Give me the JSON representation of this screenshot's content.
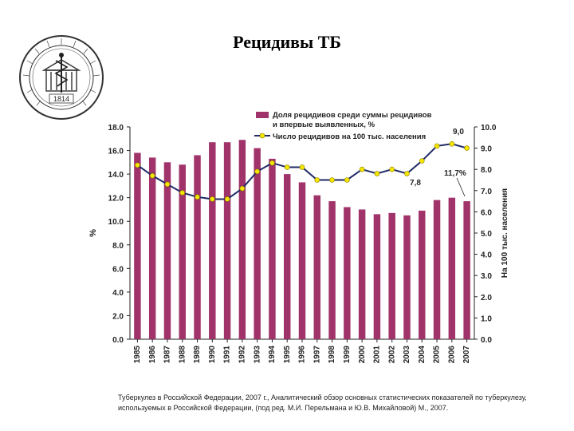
{
  "title": "Рецидивы ТБ",
  "logo": {
    "year": "1814"
  },
  "source": "Туберкулез в Российской Федерации, 2007 г., Аналитический обзор основных статистических показателей по туберкулезу, используемых в Российской Федерации, (под ред. М.И. Перельмана и Ю.В. Михайловой) М., 2007.",
  "chart_data": {
    "type": "bar",
    "categories": [
      "1985",
      "1986",
      "1987",
      "1988",
      "1989",
      "1990",
      "1991",
      "1992",
      "1993",
      "1994",
      "1995",
      "1996",
      "1997",
      "1998",
      "1999",
      "2000",
      "2001",
      "2002",
      "2003",
      "2004",
      "2005",
      "2006",
      "2007"
    ],
    "series": [
      {
        "name": "Доля рецидивов среди суммы рецидивов и впервые выявленных, %",
        "type": "bar",
        "axis": "left",
        "color": "#a0336a",
        "values": [
          15.8,
          15.4,
          15.0,
          14.8,
          15.6,
          16.7,
          16.7,
          16.9,
          16.2,
          15.3,
          14.0,
          13.3,
          12.2,
          11.7,
          11.2,
          11.0,
          10.6,
          10.7,
          10.5,
          10.9,
          11.8,
          12.0,
          11.7
        ]
      },
      {
        "name": "Число рецидивов на 100 тыс. населения",
        "type": "line",
        "axis": "right",
        "color": "#1f2a66",
        "marker_color": "#f5e600",
        "values": [
          8.2,
          7.7,
          7.3,
          6.9,
          6.7,
          6.6,
          6.6,
          7.1,
          7.9,
          8.3,
          8.1,
          8.1,
          7.5,
          7.5,
          7.5,
          8.0,
          7.8,
          8.0,
          7.8,
          8.4,
          9.1,
          9.2,
          9.0
        ]
      }
    ],
    "ylabel": "%",
    "y2label": "На 100 тыс. населения",
    "ylim": [
      0,
      18
    ],
    "y2lim": [
      0,
      10
    ],
    "yticks": [
      "0.0",
      "2.0",
      "4.0",
      "6.0",
      "8.0",
      "10.0",
      "12.0",
      "14.0",
      "16.0",
      "18.0"
    ],
    "y2ticks": [
      "0.0",
      "1.0",
      "2.0",
      "3.0",
      "4.0",
      "5.0",
      "6.0",
      "7.0",
      "8.0",
      "9.0",
      "10.0"
    ],
    "legend": {
      "bar_label_line1": "Доля рецидивов среди суммы рецидивов",
      "bar_label_line2": "и впервые выявленных, %",
      "line_label": "Число рецидивов на 100 тыс. населения",
      "placement": "top"
    },
    "annotations": [
      "9,0",
      "11,7%",
      "7,8"
    ]
  }
}
